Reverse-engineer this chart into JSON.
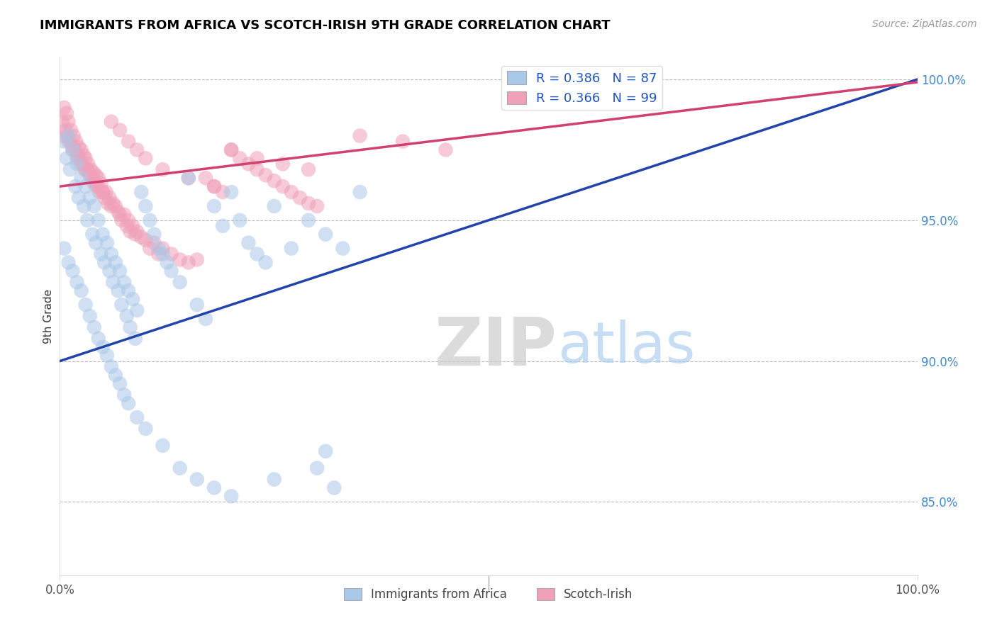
{
  "title": "IMMIGRANTS FROM AFRICA VS SCOTCH-IRISH 9TH GRADE CORRELATION CHART",
  "source_text": "Source: ZipAtlas.com",
  "ylabel": "9th Grade",
  "watermark_zip": "ZIP",
  "watermark_atlas": "atlas",
  "legend_blue_label": "R = 0.386   N = 87",
  "legend_pink_label": "R = 0.366   N = 99",
  "legend_blue_label_short": "Immigrants from Africa",
  "legend_pink_label_short": "Scotch-Irish",
  "blue_color": "#aac8e8",
  "pink_color": "#f0a0b8",
  "blue_line_color": "#2244aa",
  "pink_line_color": "#d04070",
  "xlim": [
    0.0,
    1.0
  ],
  "ylim": [
    0.824,
    1.008
  ],
  "right_yticks": [
    1.0,
    0.95,
    0.9,
    0.85
  ],
  "right_ytick_labels": [
    "100.0%",
    "95.0%",
    "90.0%",
    "85.0%"
  ],
  "xtick_labels": [
    "0.0%",
    "100.0%"
  ],
  "xtick_positions": [
    0.0,
    1.0
  ],
  "blue_scatter_x": [
    0.005,
    0.008,
    0.01,
    0.012,
    0.015,
    0.018,
    0.02,
    0.022,
    0.025,
    0.028,
    0.03,
    0.032,
    0.035,
    0.038,
    0.04,
    0.042,
    0.045,
    0.048,
    0.05,
    0.052,
    0.055,
    0.058,
    0.06,
    0.062,
    0.065,
    0.068,
    0.07,
    0.072,
    0.075,
    0.078,
    0.08,
    0.082,
    0.085,
    0.088,
    0.09,
    0.095,
    0.1,
    0.105,
    0.11,
    0.115,
    0.12,
    0.125,
    0.13,
    0.14,
    0.15,
    0.16,
    0.17,
    0.18,
    0.19,
    0.2,
    0.21,
    0.22,
    0.23,
    0.24,
    0.25,
    0.27,
    0.29,
    0.31,
    0.33,
    0.35,
    0.005,
    0.01,
    0.015,
    0.02,
    0.025,
    0.03,
    0.035,
    0.04,
    0.045,
    0.05,
    0.055,
    0.06,
    0.065,
    0.07,
    0.075,
    0.08,
    0.09,
    0.1,
    0.12,
    0.14,
    0.16,
    0.18,
    0.2,
    0.25,
    0.3,
    0.31,
    0.32
  ],
  "blue_scatter_y": [
    0.978,
    0.972,
    0.98,
    0.968,
    0.975,
    0.962,
    0.97,
    0.958,
    0.965,
    0.955,
    0.962,
    0.95,
    0.958,
    0.945,
    0.955,
    0.942,
    0.95,
    0.938,
    0.945,
    0.935,
    0.942,
    0.932,
    0.938,
    0.928,
    0.935,
    0.925,
    0.932,
    0.92,
    0.928,
    0.916,
    0.925,
    0.912,
    0.922,
    0.908,
    0.918,
    0.96,
    0.955,
    0.95,
    0.945,
    0.94,
    0.938,
    0.935,
    0.932,
    0.928,
    0.965,
    0.92,
    0.915,
    0.955,
    0.948,
    0.96,
    0.95,
    0.942,
    0.938,
    0.935,
    0.955,
    0.94,
    0.95,
    0.945,
    0.94,
    0.96,
    0.94,
    0.935,
    0.932,
    0.928,
    0.925,
    0.92,
    0.916,
    0.912,
    0.908,
    0.905,
    0.902,
    0.898,
    0.895,
    0.892,
    0.888,
    0.885,
    0.88,
    0.876,
    0.87,
    0.862,
    0.858,
    0.855,
    0.852,
    0.858,
    0.862,
    0.868,
    0.855
  ],
  "pink_scatter_x": [
    0.003,
    0.005,
    0.007,
    0.008,
    0.009,
    0.01,
    0.012,
    0.013,
    0.015,
    0.016,
    0.018,
    0.019,
    0.02,
    0.022,
    0.023,
    0.025,
    0.026,
    0.028,
    0.029,
    0.03,
    0.032,
    0.033,
    0.035,
    0.036,
    0.038,
    0.039,
    0.04,
    0.042,
    0.043,
    0.045,
    0.046,
    0.048,
    0.05,
    0.052,
    0.054,
    0.056,
    0.058,
    0.06,
    0.062,
    0.065,
    0.068,
    0.07,
    0.072,
    0.075,
    0.078,
    0.08,
    0.082,
    0.085,
    0.088,
    0.09,
    0.095,
    0.1,
    0.105,
    0.11,
    0.115,
    0.12,
    0.13,
    0.14,
    0.15,
    0.16,
    0.17,
    0.18,
    0.19,
    0.2,
    0.21,
    0.22,
    0.23,
    0.24,
    0.25,
    0.26,
    0.27,
    0.28,
    0.29,
    0.3,
    0.005,
    0.01,
    0.015,
    0.02,
    0.025,
    0.03,
    0.035,
    0.04,
    0.045,
    0.05,
    0.06,
    0.07,
    0.08,
    0.09,
    0.1,
    0.12,
    0.15,
    0.18,
    0.2,
    0.23,
    0.26,
    0.29,
    0.35,
    0.4,
    0.45
  ],
  "pink_scatter_y": [
    0.985,
    0.99,
    0.982,
    0.988,
    0.98,
    0.985,
    0.978,
    0.982,
    0.976,
    0.98,
    0.975,
    0.978,
    0.973,
    0.976,
    0.972,
    0.975,
    0.97,
    0.973,
    0.968,
    0.972,
    0.968,
    0.97,
    0.966,
    0.968,
    0.965,
    0.967,
    0.963,
    0.966,
    0.962,
    0.965,
    0.96,
    0.963,
    0.96,
    0.958,
    0.96,
    0.956,
    0.958,
    0.955,
    0.956,
    0.955,
    0.953,
    0.952,
    0.95,
    0.952,
    0.948,
    0.95,
    0.946,
    0.948,
    0.945,
    0.946,
    0.944,
    0.943,
    0.94,
    0.942,
    0.938,
    0.94,
    0.938,
    0.936,
    0.935,
    0.936,
    0.965,
    0.962,
    0.96,
    0.975,
    0.972,
    0.97,
    0.968,
    0.966,
    0.964,
    0.962,
    0.96,
    0.958,
    0.956,
    0.955,
    0.98,
    0.978,
    0.975,
    0.972,
    0.97,
    0.968,
    0.966,
    0.964,
    0.962,
    0.96,
    0.985,
    0.982,
    0.978,
    0.975,
    0.972,
    0.968,
    0.965,
    0.962,
    0.975,
    0.972,
    0.97,
    0.968,
    0.98,
    0.978,
    0.975
  ],
  "blue_line_x": [
    0.0,
    1.0
  ],
  "blue_line_y_start": 0.9,
  "blue_line_y_end": 1.0,
  "pink_line_x": [
    0.0,
    1.0
  ],
  "pink_line_y_start": 0.962,
  "pink_line_y_end": 0.999
}
